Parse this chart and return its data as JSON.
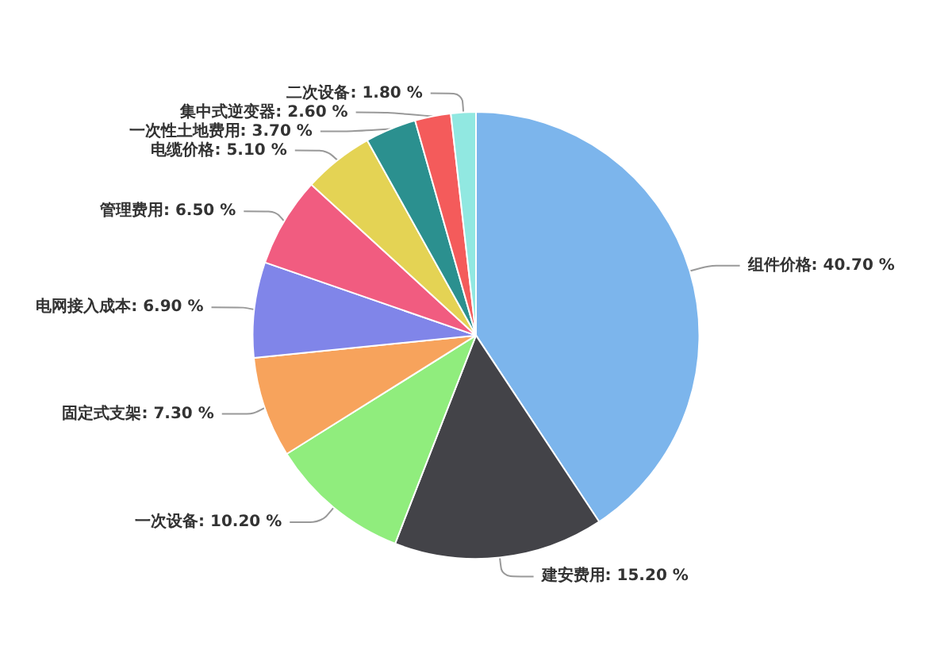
{
  "chart_data": {
    "type": "pie",
    "categories": [
      "组件价格",
      "建安费用",
      "一次设备",
      "固定式支架",
      "电网接入成本",
      "管理费用",
      "电缆价格",
      "一次性土地费用",
      "集中式逆变器",
      "二次设备"
    ],
    "values": [
      40.7,
      15.2,
      10.2,
      7.3,
      6.9,
      6.5,
      5.1,
      3.7,
      2.6,
      1.8
    ],
    "value_labels": [
      "40.70 %",
      "15.20 %",
      "10.20 %",
      "7.30 %",
      "6.90 %",
      "6.50 %",
      "5.10 %",
      "3.70 %",
      "2.60 %",
      "1.80 %"
    ],
    "colors": [
      "#7cb5ec",
      "#434348",
      "#90ed7d",
      "#f7a35c",
      "#8085e9",
      "#f15c80",
      "#e4d354",
      "#2b908f",
      "#f45b5b",
      "#91e8e1"
    ],
    "legend": false
  }
}
